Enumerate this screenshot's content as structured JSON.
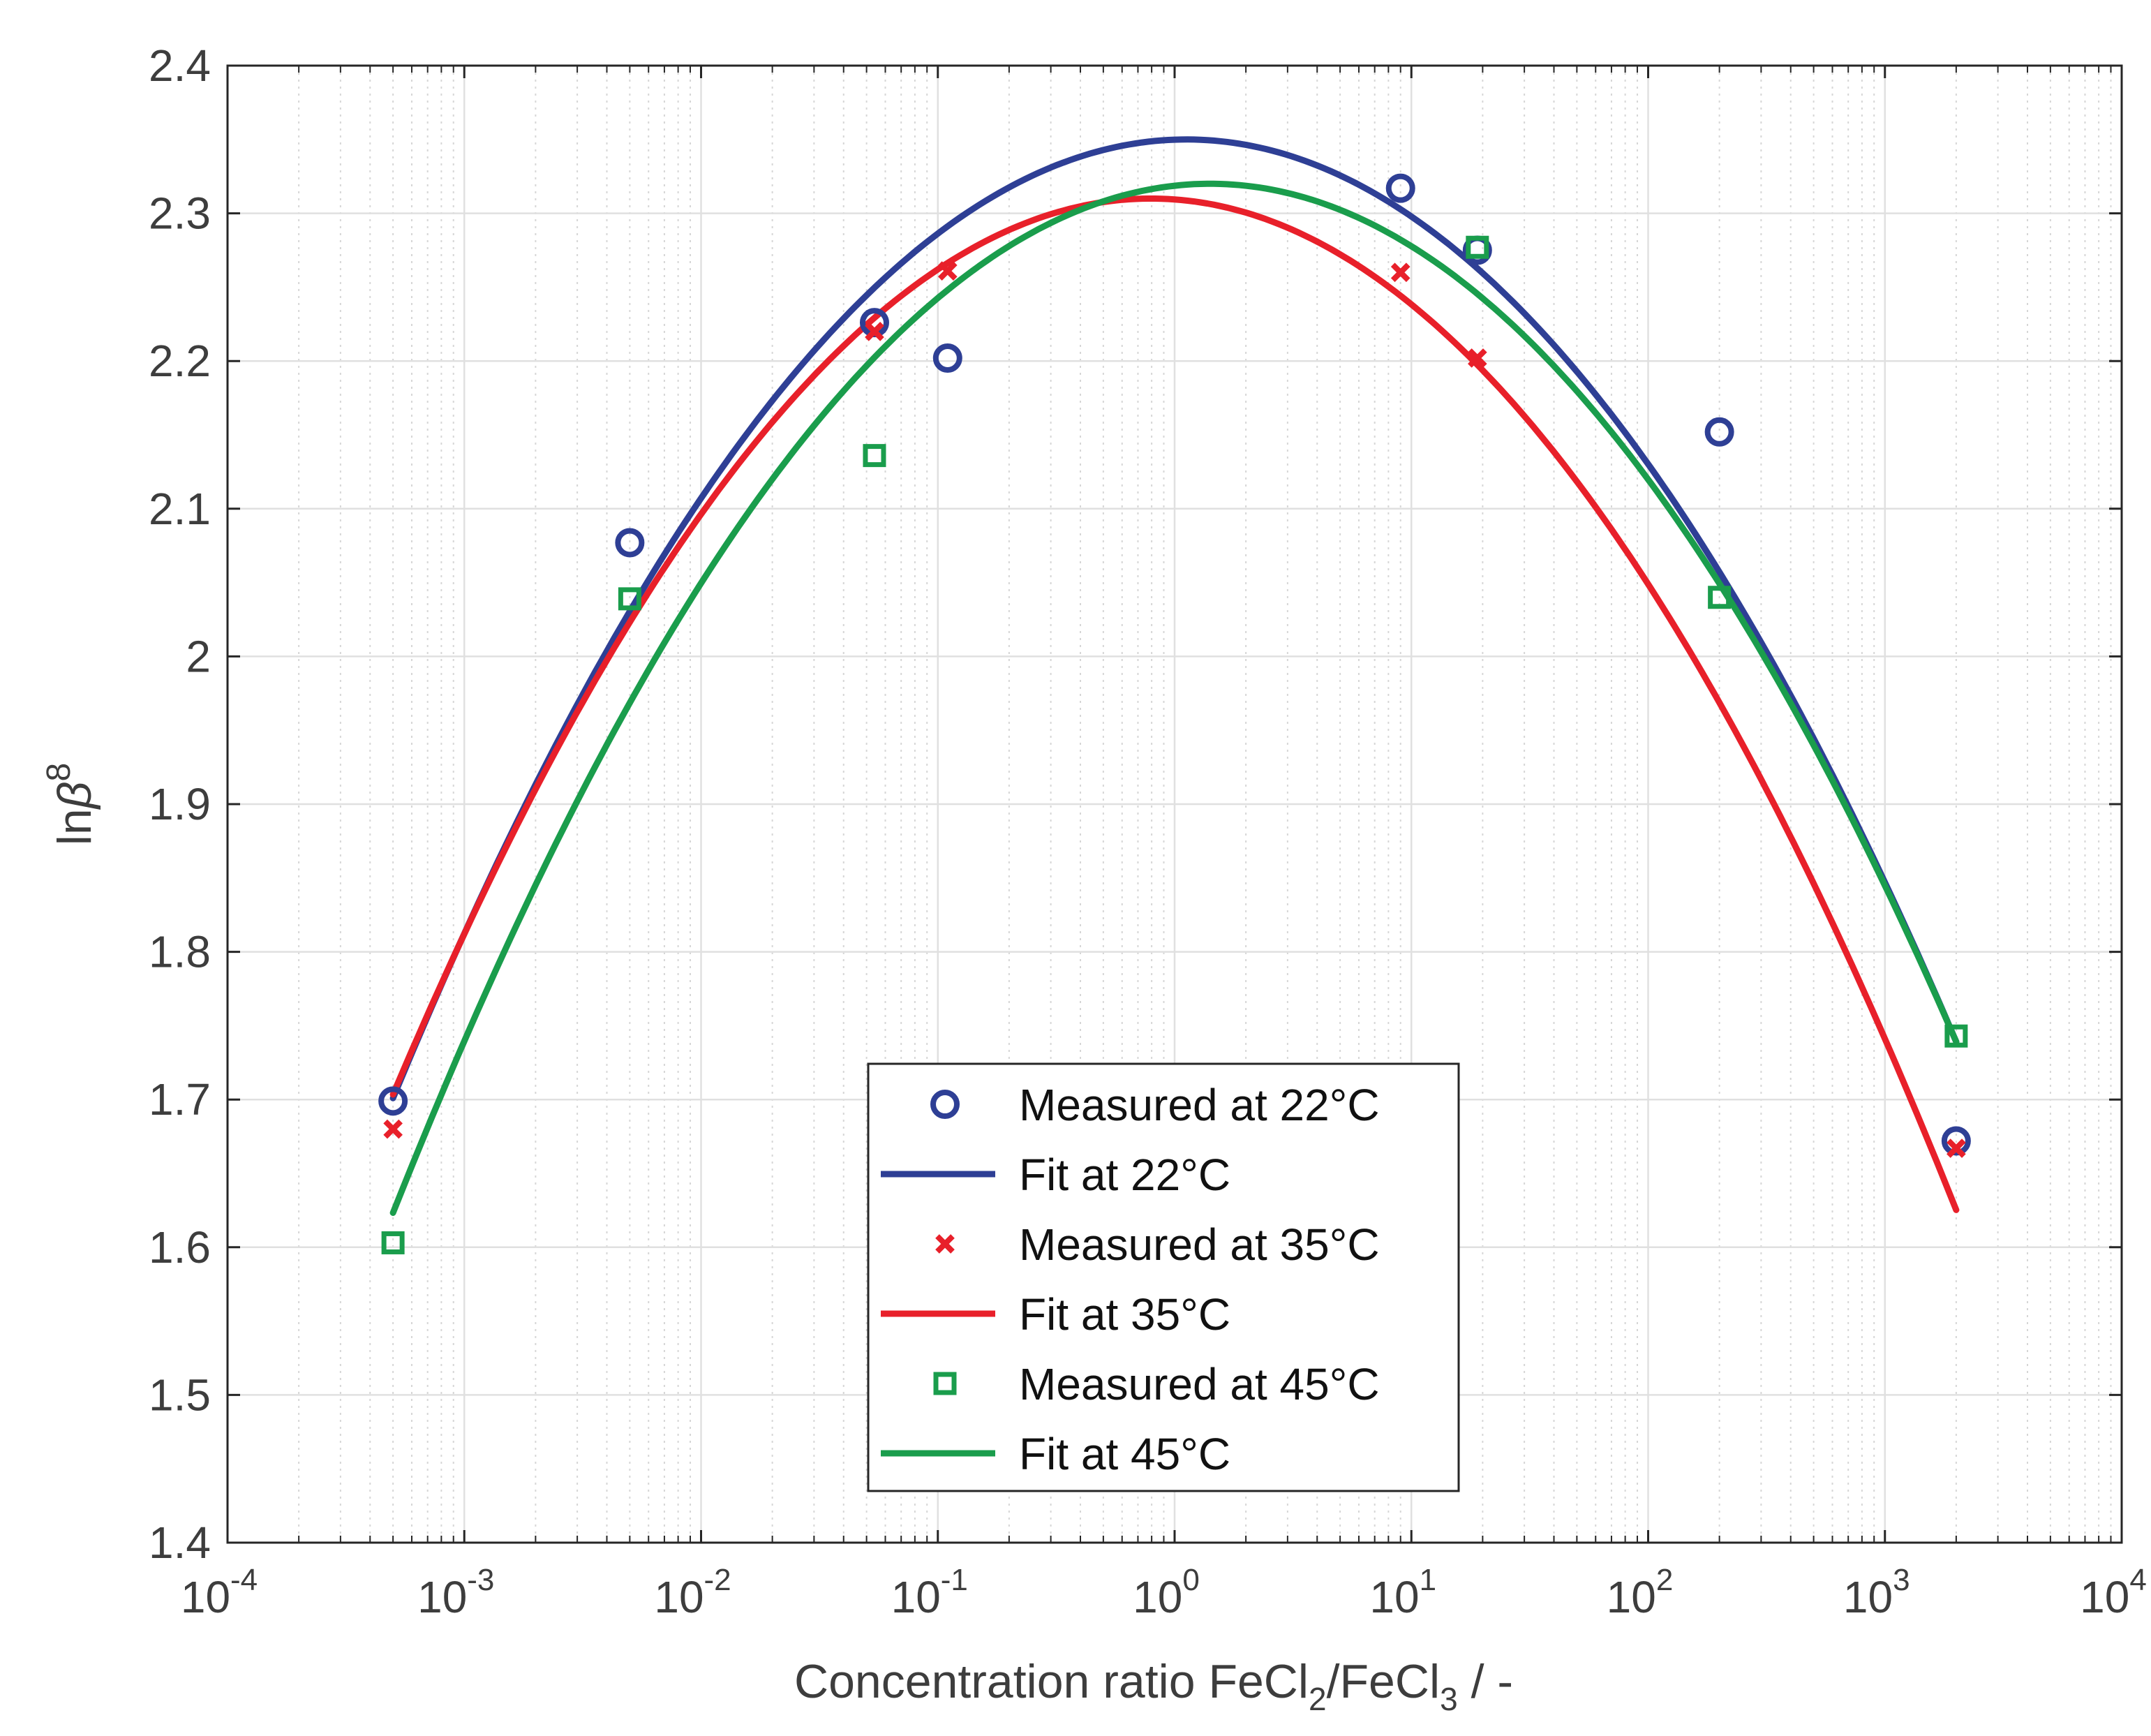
{
  "chart_data": {
    "type": "scatter",
    "title": "",
    "x_scale": "log",
    "xlim": [
      0.0001,
      10000
    ],
    "ylim": [
      1.4,
      2.4
    ],
    "grid": true,
    "x_ticks": [
      {
        "value": 0.0001,
        "base": "10",
        "exp": "-4"
      },
      {
        "value": 0.001,
        "base": "10",
        "exp": "-3"
      },
      {
        "value": 0.01,
        "base": "10",
        "exp": "-2"
      },
      {
        "value": 0.1,
        "base": "10",
        "exp": "-1"
      },
      {
        "value": 1,
        "base": "10",
        "exp": "0"
      },
      {
        "value": 10,
        "base": "10",
        "exp": "1"
      },
      {
        "value": 100,
        "base": "10",
        "exp": "2"
      },
      {
        "value": 1000,
        "base": "10",
        "exp": "3"
      },
      {
        "value": 10000,
        "base": "10",
        "exp": "4"
      }
    ],
    "y_ticks": [
      {
        "value": 1.4,
        "label": "1.4"
      },
      {
        "value": 1.5,
        "label": "1.5"
      },
      {
        "value": 1.6,
        "label": "1.6"
      },
      {
        "value": 1.7,
        "label": "1.7"
      },
      {
        "value": 1.8,
        "label": "1.8"
      },
      {
        "value": 1.9,
        "label": "1.9"
      },
      {
        "value": 2.0,
        "label": "2"
      },
      {
        "value": 2.1,
        "label": "2.1"
      },
      {
        "value": 2.2,
        "label": "2.2"
      },
      {
        "value": 2.3,
        "label": "2.3"
      },
      {
        "value": 2.4,
        "label": "2.4"
      }
    ],
    "xlabel": {
      "parts": [
        {
          "text": "Concentration ratio FeCl"
        },
        {
          "text": "2",
          "sub": true
        },
        {
          "text": "/FeCl"
        },
        {
          "text": "3",
          "sub": true
        },
        {
          "text": " / -"
        }
      ]
    },
    "ylabel": {
      "base": "ln",
      "symbol": "β",
      "sup": "8"
    },
    "measured": [
      {
        "name": "Measured at 22°C",
        "marker": "circle",
        "color": "#2e3f95",
        "x": [
          0.0005,
          0.005,
          0.054,
          0.11,
          9,
          19,
          200,
          2000
        ],
        "y": [
          1.699,
          2.077,
          2.226,
          2.202,
          2.317,
          2.275,
          2.152,
          1.672
        ]
      },
      {
        "name": "Measured at 35°C",
        "marker": "x",
        "color": "#e8202a",
        "x": [
          0.0005,
          0.054,
          0.11,
          9,
          19,
          2000
        ],
        "y": [
          1.68,
          2.22,
          2.261,
          2.26,
          2.202,
          1.667
        ]
      },
      {
        "name": "Measured at 45°C",
        "marker": "square",
        "color": "#1a9d4c",
        "x": [
          0.0005,
          0.005,
          0.054,
          19,
          200,
          2000
        ],
        "y": [
          1.603,
          2.039,
          2.136,
          2.277,
          2.04,
          1.743
        ]
      }
    ],
    "fits": [
      {
        "name": "Fit at 22°C",
        "color": "#2e3f95",
        "type": "quadratic-in-log10x",
        "vertex_log10x": 0.05,
        "vertex_y": 2.35,
        "coef_a": -0.0578,
        "x_range": [
          0.0005,
          2000
        ]
      },
      {
        "name": "Fit at 35°C",
        "color": "#e8202a",
        "type": "quadratic-in-log10x",
        "vertex_log10x": -0.1,
        "vertex_y": 2.31,
        "coef_a": -0.0592,
        "x_range": [
          0.0005,
          2000
        ]
      },
      {
        "name": "Fit at 45°C",
        "color": "#1a9d4c",
        "type": "quadratic-in-log10x",
        "vertex_log10x": 0.15,
        "vertex_y": 2.32,
        "coef_a": -0.0585,
        "x_range": [
          0.0005,
          2000
        ]
      }
    ],
    "legend": {
      "position": "bottom-center",
      "entries": [
        {
          "label": "Measured at 22°C",
          "kind": "marker",
          "marker": "circle",
          "color": "#2e3f95"
        },
        {
          "label": "Fit at 22°C",
          "kind": "line",
          "color": "#2e3f95"
        },
        {
          "label": "Measured at 35°C",
          "kind": "marker",
          "marker": "x",
          "color": "#e8202a"
        },
        {
          "label": "Fit at 35°C",
          "kind": "line",
          "color": "#e8202a"
        },
        {
          "label": "Measured at 45°C",
          "kind": "marker",
          "marker": "square",
          "color": "#1a9d4c"
        },
        {
          "label": "Fit at 45°C",
          "kind": "line",
          "color": "#1a9d4c"
        }
      ]
    }
  }
}
